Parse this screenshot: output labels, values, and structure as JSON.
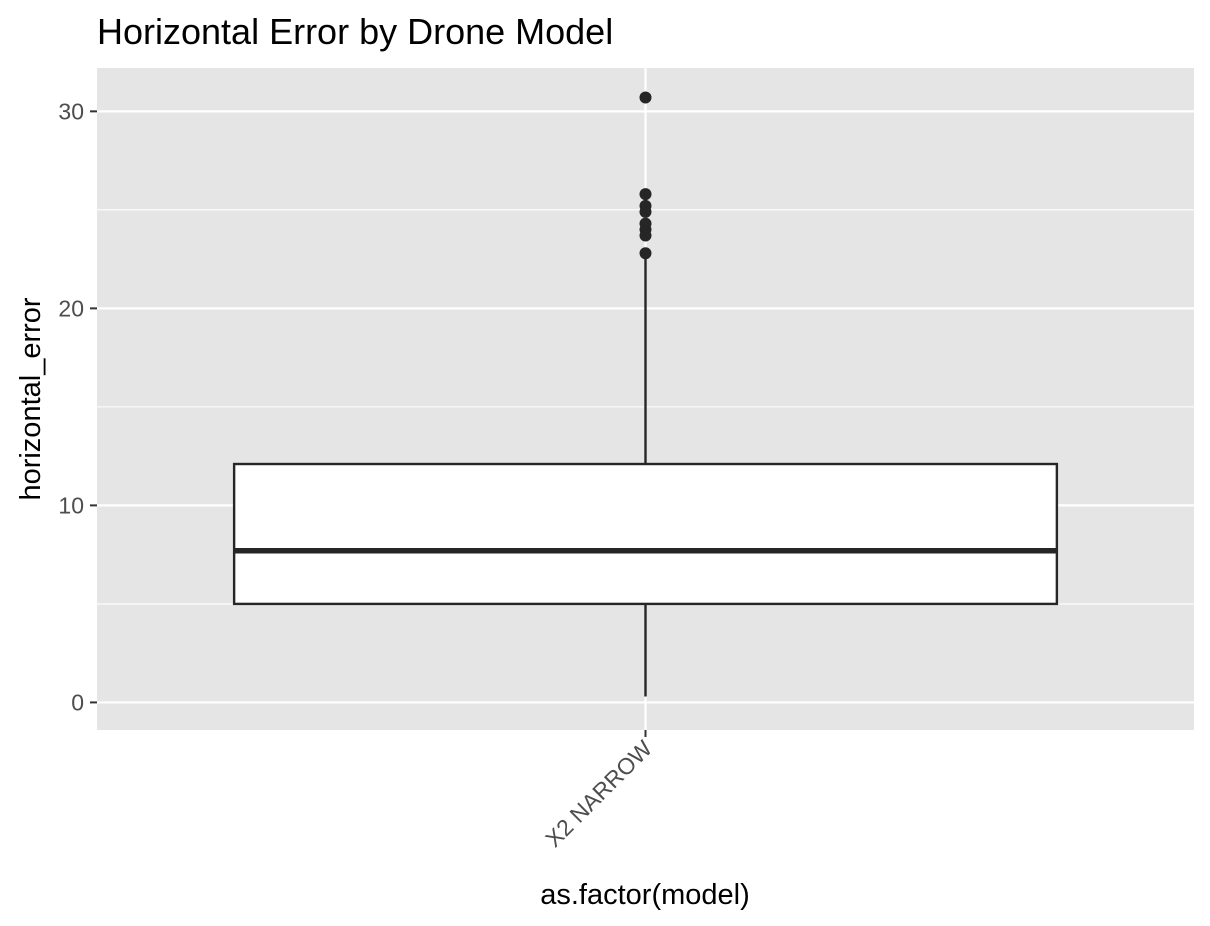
{
  "chart_data": {
    "type": "box",
    "title": "Horizontal Error by Drone Model",
    "xlabel": "as.factor(model)",
    "ylabel": "horizontal_error",
    "ylim": [
      -1.4,
      32.2
    ],
    "yticks": [
      0,
      10,
      20,
      30
    ],
    "categories": [
      "X2 NARROW"
    ],
    "boxes": [
      {
        "category": "X2 NARROW",
        "whisker_low": 0.3,
        "q1": 5.0,
        "median": 7.7,
        "q3": 12.1,
        "whisker_high": 22.8,
        "outliers": [
          22.8,
          23.7,
          24.0,
          24.3,
          24.9,
          25.2,
          25.8,
          30.7
        ]
      }
    ],
    "grid": true,
    "legend": "none",
    "colors": {
      "panel": "#e5e5e5",
      "grid": "#ffffff",
      "box_fill": "#ffffff",
      "box_line": "#262626",
      "outlier": "#262626"
    }
  }
}
